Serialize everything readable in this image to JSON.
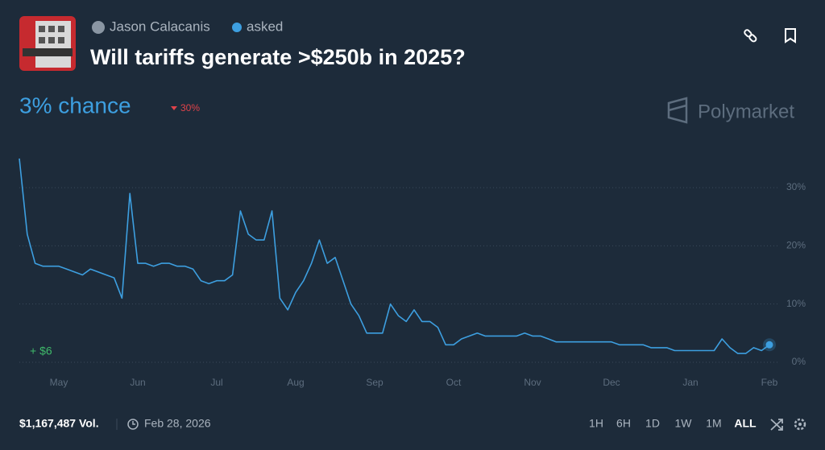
{
  "header": {
    "author": "Jason Calacanis",
    "action": "asked",
    "title": "Will tariffs generate >$250b in 2025?"
  },
  "summary": {
    "chance": "3% chance",
    "change": "30%"
  },
  "brand": "Polymarket",
  "chart_data": {
    "type": "line",
    "x": [
      null,
      null,
      null,
      null,
      null,
      "May",
      null,
      null,
      null,
      null,
      null,
      null,
      null,
      null,
      null,
      "Jun",
      null,
      null,
      null,
      null,
      null,
      null,
      null,
      null,
      null,
      "Jul",
      null,
      null,
      null,
      null,
      null,
      null,
      null,
      null,
      null,
      "Aug",
      null,
      null,
      null,
      null,
      null,
      null,
      null,
      null,
      null,
      "Sep",
      null,
      null,
      null,
      null,
      null,
      null,
      null,
      null,
      null,
      "Oct",
      null,
      null,
      null,
      null,
      null,
      null,
      null,
      null,
      null,
      "Nov",
      null,
      null,
      null,
      null,
      null,
      null,
      null,
      null,
      null,
      "Dec",
      null,
      null,
      null,
      null,
      null,
      null,
      null,
      null,
      null,
      "Jan",
      null,
      null,
      null,
      null,
      null,
      null,
      null,
      null,
      null,
      "Feb"
    ],
    "series": [
      {
        "color": "#3d9fe0",
        "values": [
          35,
          22,
          17,
          16.5,
          16.5,
          16.5,
          16,
          15.5,
          15,
          16,
          15.5,
          15,
          14.5,
          11,
          29,
          17,
          17,
          16.5,
          17,
          17,
          16.5,
          16.5,
          16,
          14,
          13.5,
          14,
          14,
          15,
          26,
          22,
          21,
          21,
          26,
          11,
          9,
          12,
          14,
          17,
          21,
          17,
          18,
          14,
          10,
          8,
          5,
          5,
          5,
          10,
          8,
          7,
          9,
          7,
          7,
          6,
          3,
          3,
          4,
          4.5,
          5,
          4.5,
          4.5,
          4.5,
          4.5,
          4.5,
          5,
          4.5,
          4.5,
          4,
          3.5,
          3.5,
          3.5,
          3.5,
          3.5,
          3.5,
          3.5,
          3.5,
          3,
          3,
          3,
          3,
          2.5,
          2.5,
          2.5,
          2,
          2,
          2,
          2,
          2,
          2,
          4,
          2.5,
          1.5,
          1.5,
          2.5,
          2,
          3
        ]
      }
    ],
    "ylim": [
      -1.5,
      36
    ],
    "yticks": [
      {
        "value": 0,
        "label": "0%"
      },
      {
        "value": 10,
        "label": "10%"
      },
      {
        "value": 20,
        "label": "20%"
      },
      {
        "value": 30,
        "label": "30%"
      }
    ],
    "grid": true,
    "annotation": "+ $6"
  },
  "footer": {
    "volume": "$1,167,487 Vol.",
    "end_date": "Feb 28, 2026",
    "ranges": [
      "1H",
      "6H",
      "1D",
      "1W",
      "1M",
      "ALL"
    ]
  }
}
